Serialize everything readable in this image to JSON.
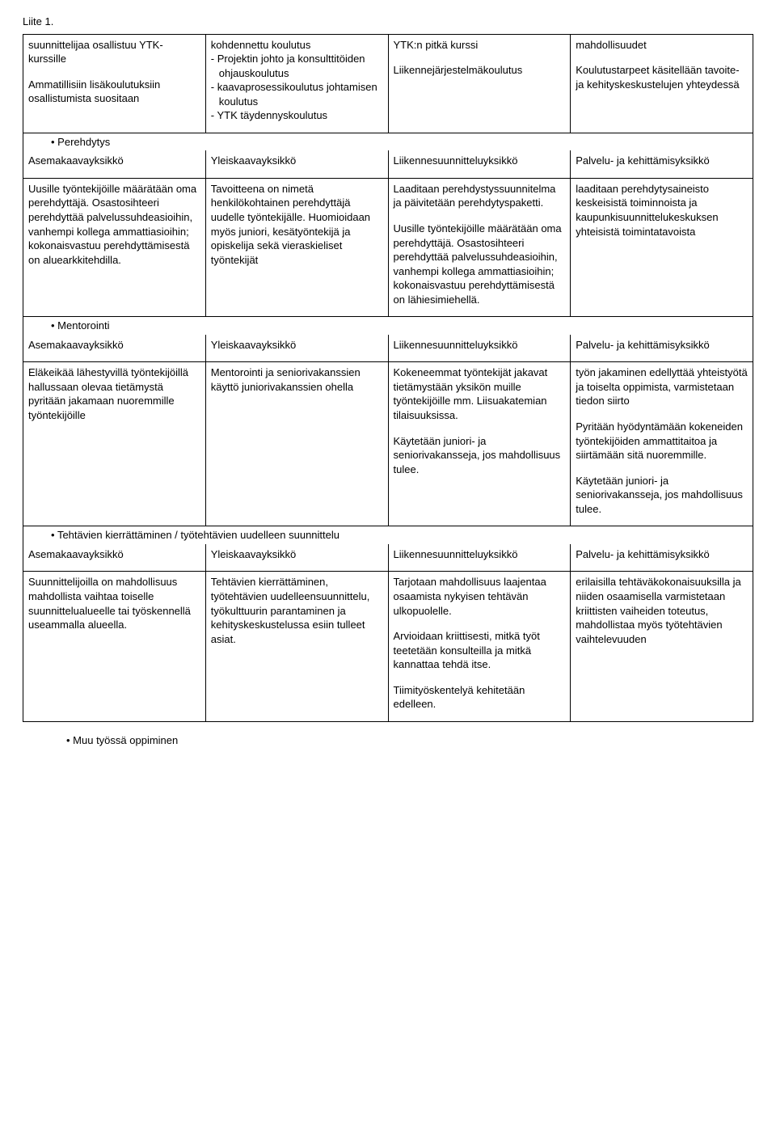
{
  "header": {
    "label": "Liite 1."
  },
  "top": {
    "c1": {
      "p1": "suunnittelijaa osallistuu YTK-kurssille",
      "p2": "Ammatillisiin lisäkoulutuksiin osallistumista suositaan"
    },
    "c2": {
      "lead": "kohdennettu koulutus",
      "li1": "Projektin johto ja konsulttitöiden ohjauskoulutus",
      "li2": "kaavaprosessikoulutus johtamisen koulutus",
      "li3": "YTK täydennyskoulutus"
    },
    "c3": {
      "p1": "YTK:n pitkä kurssi",
      "p2": "Liikennejärjestelmäkoulutus"
    },
    "c4": {
      "p1": "mahdollisuudet",
      "p2": "Koulutustarpeet käsitellään tavoite- ja kehityskeskustelujen yhteydessä"
    }
  },
  "sect_perehdytys": {
    "title": "Perehdytys",
    "h1": "Asemakaavayksikkö",
    "h2": "Yleiskaavayksikkö",
    "h3": "Liikennesuunnitteluyksikkö",
    "h4": "Palvelu- ja kehittämisyksikkö",
    "c1": "Uusille työntekijöille määrätään oma perehdyttäjä. Osastosihteeri perehdyttää palvelussuhdeasioihin, vanhempi kollega ammattiasioihin; kokonaisvastuu perehdyttämisestä on aluearkkitehdilla.",
    "c2": "Tavoitteena on nimetä henkilökohtainen perehdyttäjä uudelle työntekijälle. Huomioidaan myös juniori, kesätyöntekijä ja opiskelija sekä vieraskieliset työntekijät",
    "c3": "Laaditaan perehdystyssuunnitelma ja päivitetään perehdytyspaketti.\n\nUusille työntekijöille määrätään oma perehdyttäjä. Osastosihteeri perehdyttää palvelussuhdeasioihin, vanhempi kollega ammattiasioihin; kokonaisvastuu perehdyttämisestä on lähiesimiehellä.",
    "c4": "laaditaan perehdytysaineisto keskeisistä toiminnoista ja kaupunkisuunnittelukeskuksen yhteisistä toimintatavoista"
  },
  "sect_mentorointi": {
    "title": "Mentorointi",
    "h1": "Asemakaavayksikkö",
    "h2": "Yleiskaavayksikkö",
    "h3": "Liikennesuunnitteluyksikkö",
    "h4": "Palvelu- ja kehittämisyksikkö",
    "c1": "Eläkeikää lähestyvillä työntekijöillä hallussaan olevaa tietämystä pyritään jakamaan nuoremmille työntekijöille",
    "c2": "Mentorointi ja seniorivakanssien käyttö juniorivakanssien ohella",
    "c3": "Kokeneemmat työntekijät jakavat tietämystään yksikön muille työntekijöille mm. Liisuakatemian tilaisuuksissa.\n\nKäytetään juniori- ja seniorivakansseja, jos mahdollisuus tulee.",
    "c4": "työn jakaminen edellyttää yhteistyötä ja toiselta oppimista, varmistetaan tiedon siirto\n\nPyritään hyödyntämään kokeneiden työntekijöiden ammattitaitoa ja siirtämään sitä nuoremmille.\n\nKäytetään juniori- ja seniorivakansseja, jos mahdollisuus tulee."
  },
  "sect_tehtavien": {
    "title": "Tehtävien kierrättäminen / työtehtävien uudelleen suunnittelu",
    "h1": "Asemakaavayksikkö",
    "h2": "Yleiskaavayksikkö",
    "h3": "Liikennesuunnitteluyksikkö",
    "h4": "Palvelu- ja kehittämisyksikkö",
    "c1": "Suunnittelijoilla on mahdollisuus mahdollista vaihtaa toiselle suunnittelualueelle tai työskennellä useammalla alueella.",
    "c2": "Tehtävien kierrättäminen, työtehtävien uudelleensuunnittelu, työkulttuurin parantaminen ja kehityskeskustelussa esiin tulleet asiat.",
    "c3": "Tarjotaan mahdollisuus laajentaa osaamista nykyisen tehtävän ulkopuolelle.\n\nArvioidaan kriittisesti, mitkä työt teetetään konsulteilla ja mitkä kannattaa tehdä itse.\n\nTiimityöskentelyä kehitetään edelleen.",
    "c4": "erilaisilla tehtäväkokonaisuuksilla ja niiden osaamisella varmistetaan kriittisten vaiheiden toteutus, mahdollistaa myös työtehtävien vaihtelevuuden"
  },
  "footer": {
    "title": "Muu työssä oppiminen"
  }
}
